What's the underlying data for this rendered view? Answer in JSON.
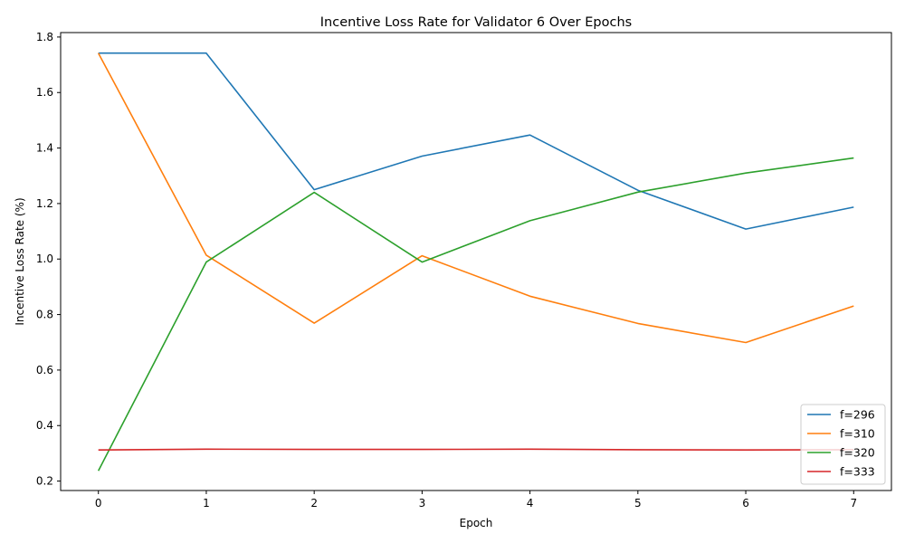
{
  "chart_data": {
    "type": "line",
    "title": "Incentive Loss Rate for Validator 6 Over Epochs",
    "xlabel": "Epoch",
    "ylabel": "Incentive Loss Rate (%)",
    "x": [
      0,
      1,
      2,
      3,
      4,
      5,
      6,
      7
    ],
    "xlim": [
      -0.35,
      7.35
    ],
    "ylim": [
      0.166,
      1.816
    ],
    "xticks": [
      "0",
      "1",
      "2",
      "3",
      "4",
      "5",
      "6",
      "7"
    ],
    "yticks": [
      "0.2",
      "0.4",
      "0.6",
      "0.8",
      "1.0",
      "1.2",
      "1.4",
      "1.6",
      "1.8"
    ],
    "grid": false,
    "legend_position": "bottom-right",
    "series": [
      {
        "name": "f=296",
        "color": "#1f77b4",
        "values": [
          1.742,
          1.742,
          1.25,
          1.371,
          1.447,
          1.248,
          1.108,
          1.187
        ]
      },
      {
        "name": "f=310",
        "color": "#ff7f0e",
        "values": [
          1.742,
          1.014,
          0.769,
          1.012,
          0.866,
          0.768,
          0.699,
          0.831
        ]
      },
      {
        "name": "f=320",
        "color": "#2ca02c",
        "values": [
          0.237,
          0.989,
          1.24,
          0.989,
          1.138,
          1.241,
          1.31,
          1.364
        ]
      },
      {
        "name": "f=333",
        "color": "#d62728",
        "values": [
          0.312,
          0.315,
          0.314,
          0.314,
          0.315,
          0.313,
          0.312,
          0.313
        ]
      }
    ]
  }
}
